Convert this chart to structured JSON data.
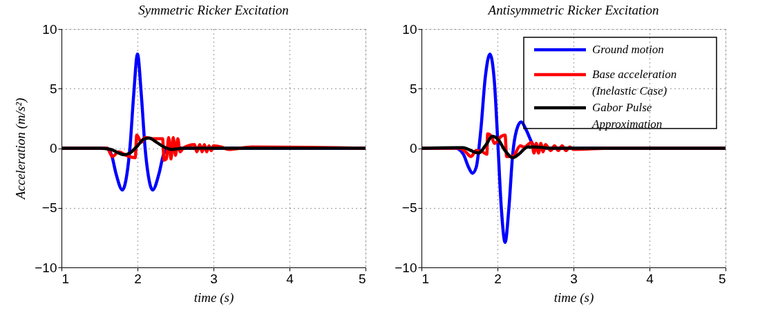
{
  "chart_data": [
    {
      "type": "line",
      "title": "Symmetric Ricker Excitation",
      "xlabel": "time (s)",
      "ylabel": "Acceleration (m/s²)",
      "xlim": [
        1,
        5
      ],
      "ylim": [
        -10,
        10
      ],
      "xticks": [
        1,
        2,
        3,
        4,
        5
      ],
      "yticks": [
        -10,
        -5,
        0,
        5,
        10
      ],
      "grid": true,
      "line_style": "solid",
      "series": [
        {
          "color": "#0000ff",
          "x": [
            1,
            1.6,
            1.66,
            1.72,
            1.8,
            1.86,
            1.9,
            1.95,
            2.0,
            2.05,
            2.1,
            2.14,
            2.2,
            2.28,
            2.34,
            2.4,
            5
          ],
          "values": [
            0,
            0,
            -0.6,
            -2.2,
            -3.5,
            -2.2,
            0,
            4.5,
            7.9,
            4.5,
            0,
            -2.2,
            -3.5,
            -2.2,
            -0.6,
            0,
            0
          ]
        },
        {
          "color": "#ff0000",
          "x": [
            1,
            1.6,
            1.67,
            1.75,
            1.85,
            1.97,
            1.99,
            2.05,
            2.1,
            2.2,
            2.33,
            2.35,
            2.38,
            2.41,
            2.44,
            2.47,
            2.5,
            2.53,
            2.56,
            2.6,
            2.75,
            2.78,
            2.82,
            2.85,
            2.88,
            2.91,
            2.94,
            2.97,
            3.0,
            3.1,
            3.2,
            3.5,
            5
          ],
          "values": [
            0,
            0,
            -0.7,
            -0.3,
            -0.6,
            -0.8,
            1.1,
            0.5,
            0.9,
            0.8,
            0.8,
            -1.0,
            -0.9,
            0.9,
            -0.9,
            0.9,
            -0.6,
            0.8,
            -0.3,
            0,
            0.3,
            -0.3,
            0.3,
            -0.3,
            0.3,
            -0.3,
            0.2,
            -0.2,
            0.2,
            0.1,
            -0.1,
            0.1,
            0
          ]
        },
        {
          "color": "#000000",
          "x": [
            1,
            1.5,
            1.65,
            1.75,
            1.82,
            1.9,
            2.0,
            2.08,
            2.15,
            2.25,
            2.35,
            2.45,
            2.6,
            5
          ],
          "values": [
            0,
            0,
            -0.1,
            -0.4,
            -0.55,
            -0.4,
            0.2,
            0.75,
            0.85,
            0.5,
            0.1,
            -0.1,
            0,
            0
          ]
        }
      ]
    },
    {
      "type": "line",
      "title": "Antisymmetric Ricker Excitation",
      "xlabel": "time (s)",
      "xlim": [
        1,
        5
      ],
      "ylim": [
        -10,
        10
      ],
      "xticks": [
        1,
        2,
        3,
        4,
        5
      ],
      "yticks": [
        -10,
        -5,
        0,
        5,
        10
      ],
      "grid": true,
      "legend": "top right",
      "line_style": "solid",
      "series": [
        {
          "name": "Ground motion",
          "color": "#0000ff",
          "x": [
            1,
            1.45,
            1.55,
            1.62,
            1.67,
            1.72,
            1.78,
            1.84,
            1.9,
            1.96,
            2.0,
            2.05,
            2.1,
            2.15,
            2.2,
            2.25,
            2.31,
            2.38,
            2.45,
            2.5,
            5
          ],
          "values": [
            0,
            0,
            -0.5,
            -1.6,
            -2.1,
            -1.6,
            1.5,
            6,
            7.9,
            5.5,
            1,
            -5,
            -7.9,
            -5,
            -0.5,
            1.5,
            2.2,
            1.5,
            0.5,
            0,
            0
          ]
        },
        {
          "name": "Base acceleration\n(Inelastic Case)",
          "color": "#ff0000",
          "x": [
            1,
            1.5,
            1.58,
            1.65,
            1.72,
            1.8,
            1.86,
            1.87,
            1.92,
            1.96,
            2.05,
            2.1,
            2.12,
            2.2,
            2.3,
            2.35,
            2.45,
            2.48,
            2.51,
            2.54,
            2.57,
            2.6,
            2.63,
            2.7,
            2.75,
            2.8,
            2.85,
            2.9,
            2.95,
            3.0,
            3.5,
            5
          ],
          "values": [
            0,
            0,
            -0.3,
            -0.7,
            -0.2,
            -0.3,
            -0.5,
            1.2,
            1.0,
            0.4,
            1.0,
            1.1,
            -0.7,
            -0.7,
            0.2,
            0.1,
            0.5,
            -0.4,
            0.4,
            -0.4,
            0.4,
            -0.3,
            0.3,
            -0.2,
            0.2,
            -0.2,
            0.2,
            -0.2,
            0.1,
            -0.1,
            0,
            0
          ]
        },
        {
          "name": "Gabor Pulse\nApproximation",
          "color": "#000000",
          "x": [
            1,
            1.45,
            1.55,
            1.65,
            1.75,
            1.85,
            1.93,
            2.0,
            2.1,
            2.2,
            2.28,
            2.4,
            2.5,
            2.7,
            5
          ],
          "values": [
            0,
            0.05,
            0.05,
            -0.2,
            -0.4,
            0.3,
            1.0,
            0.8,
            -0.2,
            -0.8,
            -0.5,
            0.1,
            0.1,
            0,
            0
          ]
        }
      ]
    }
  ]
}
